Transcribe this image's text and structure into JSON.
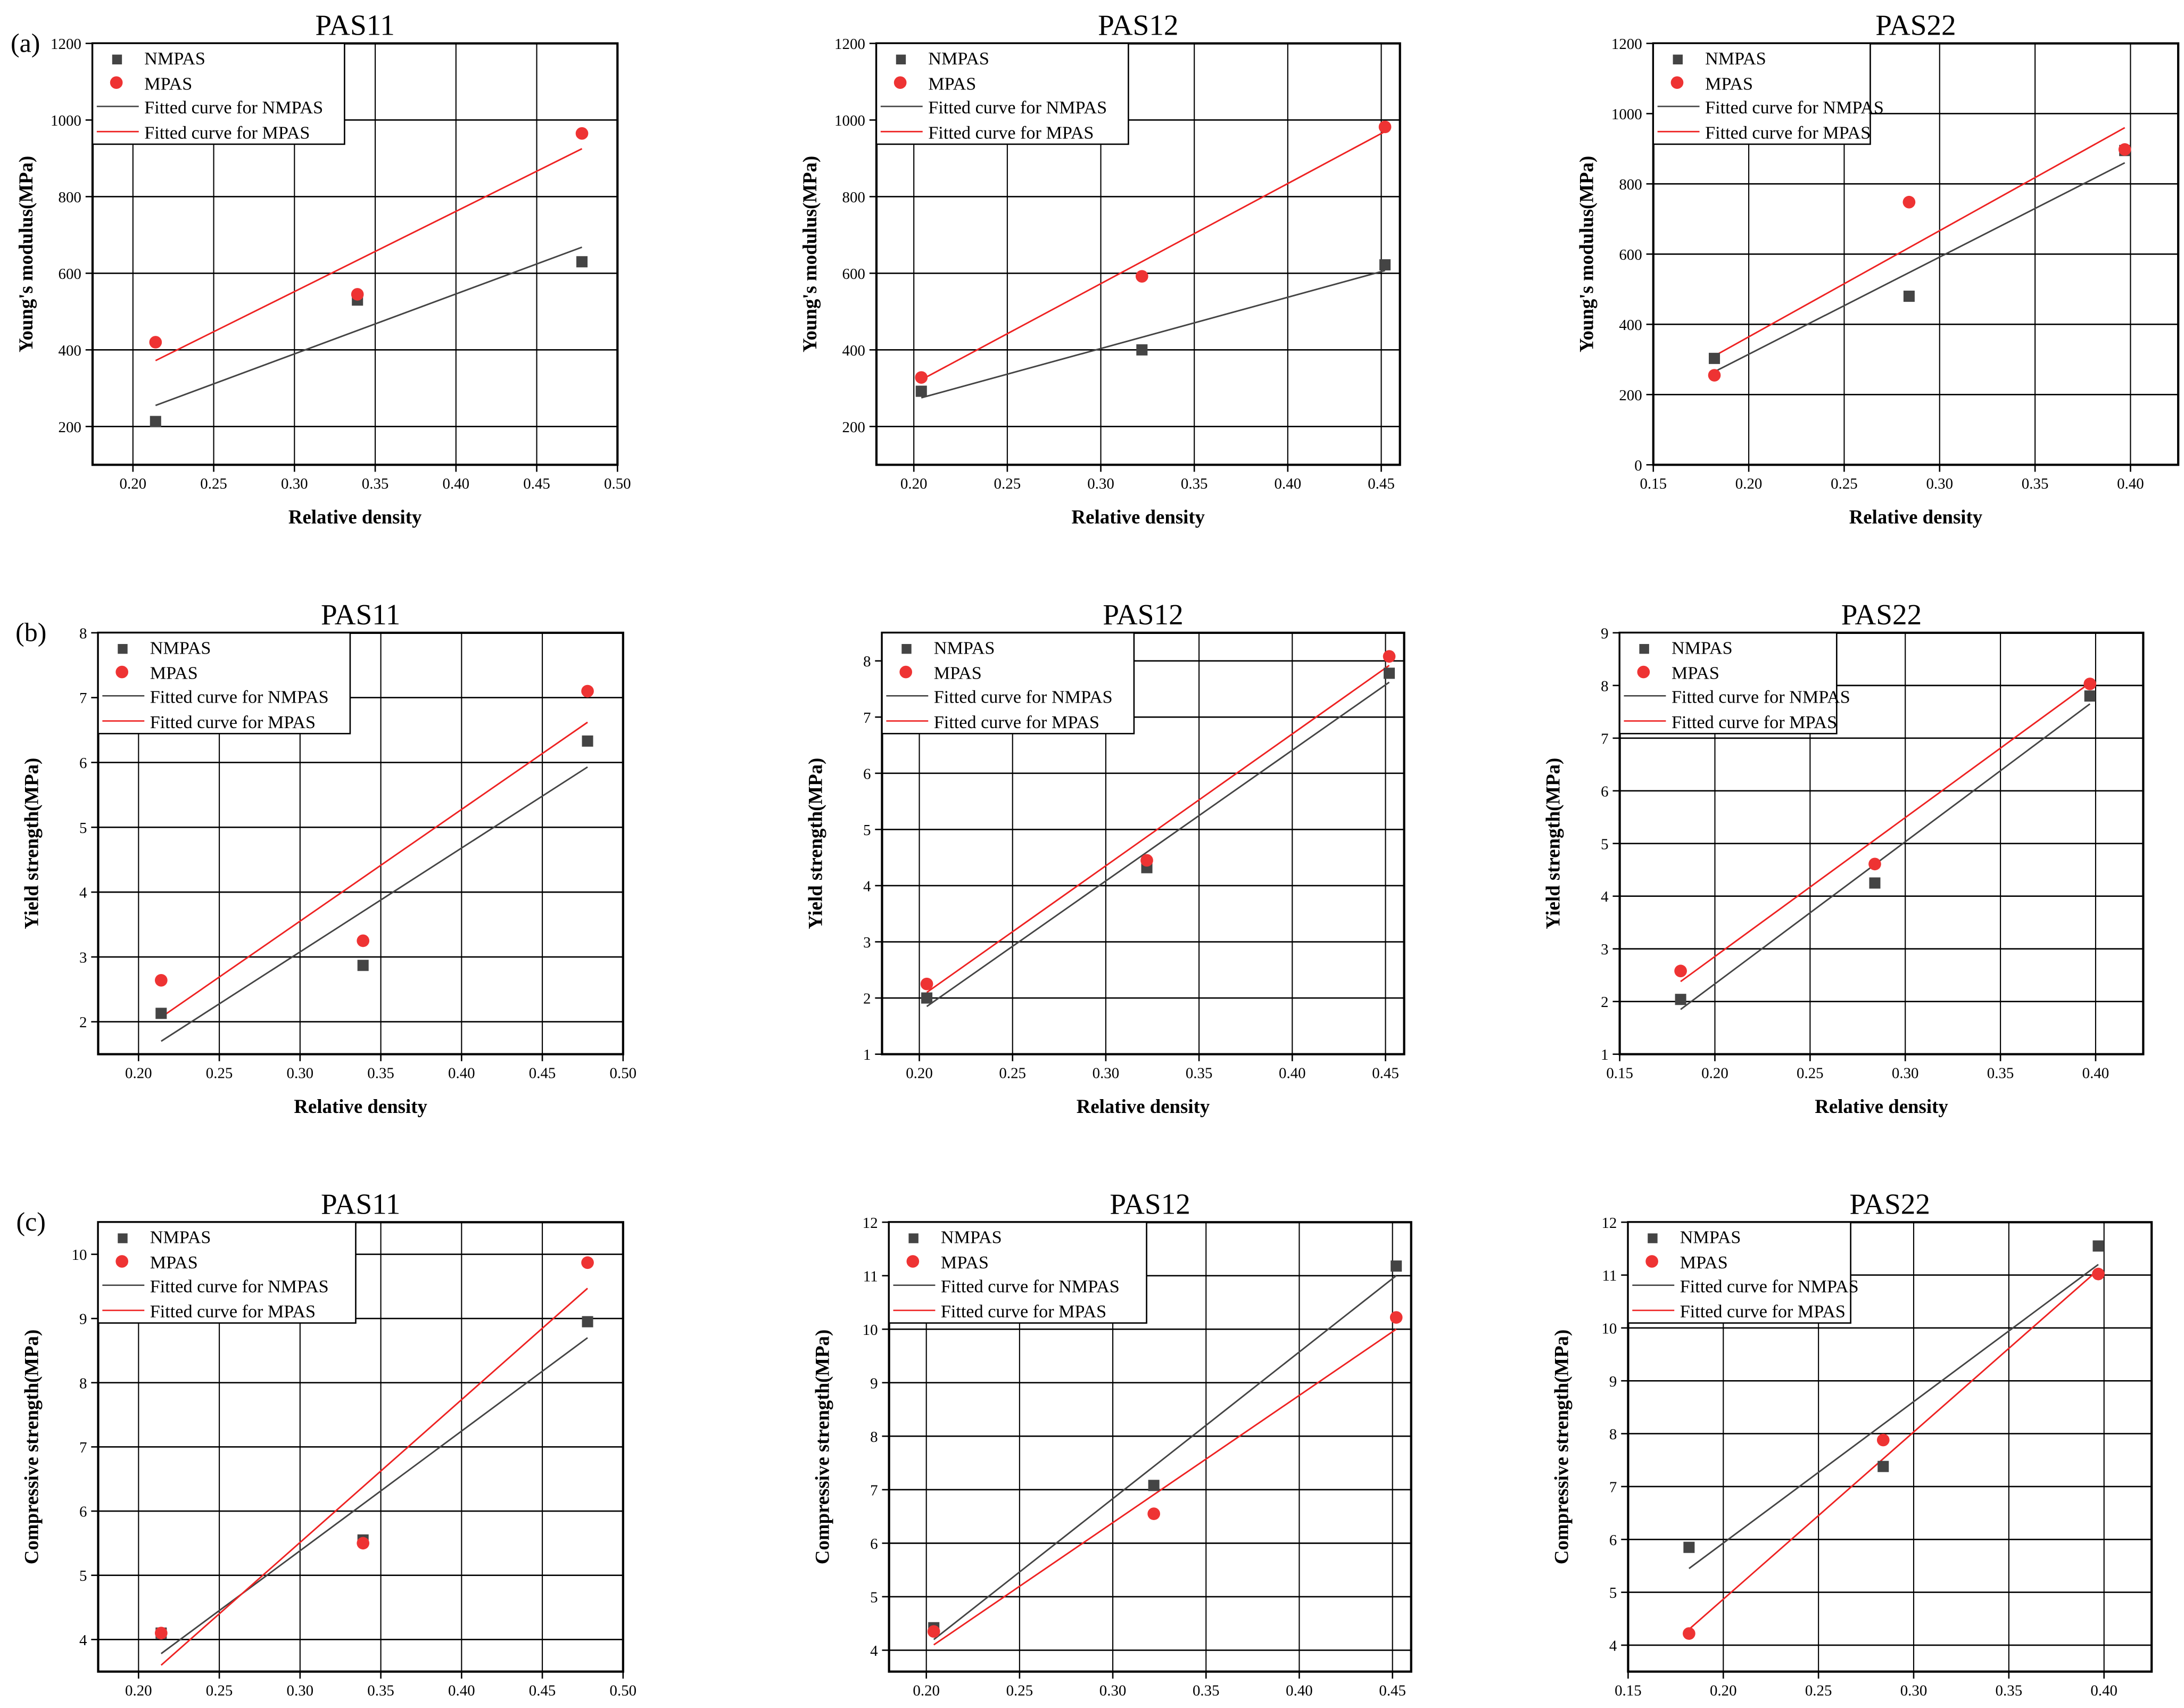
{
  "chart_data": [
    {
      "type": "scatter",
      "panel": "(a)",
      "title": "PAS11",
      "xlabel": "Relative density",
      "ylabel": "Young's modulus(MPa)",
      "xlim": [
        0.175,
        0.5
      ],
      "ylim": [
        100,
        1200
      ],
      "xticks": [
        0.2,
        0.25,
        0.3,
        0.35,
        0.4,
        0.45,
        0.5
      ],
      "yticks": [
        200,
        400,
        600,
        800,
        1000,
        1200
      ],
      "x": [
        0.214,
        0.339,
        0.478
      ],
      "series": [
        {
          "name": "NMPAS",
          "values": [
            213,
            530,
            630
          ]
        },
        {
          "name": "MPAS",
          "values": [
            420,
            545,
            965
          ]
        }
      ],
      "fits": [
        {
          "name": "Fitted curve for NMPAS",
          "values": [
            255,
            668
          ]
        },
        {
          "name": "Fitted curve for MPAS",
          "values": [
            372,
            925
          ]
        }
      ],
      "grid": true,
      "legend": "top-left"
    },
    {
      "type": "scatter",
      "panel": "",
      "title": "PAS12",
      "xlabel": "Relative density",
      "ylabel": "Young's modulus(MPa)",
      "xlim": [
        0.18,
        0.46
      ],
      "ylim": [
        100,
        1200
      ],
      "xticks": [
        0.2,
        0.25,
        0.3,
        0.35,
        0.4,
        0.45
      ],
      "yticks": [
        200,
        400,
        600,
        800,
        1000,
        1200
      ],
      "x": [
        0.204,
        0.322,
        0.452
      ],
      "series": [
        {
          "name": "NMPAS",
          "values": [
            292,
            400,
            622
          ]
        },
        {
          "name": "MPAS",
          "values": [
            328,
            592,
            982
          ]
        }
      ],
      "fits": [
        {
          "name": "Fitted curve for NMPAS",
          "values": [
            275,
            607
          ]
        },
        {
          "name": "Fitted curve for MPAS",
          "values": [
            322,
            970
          ]
        }
      ],
      "grid": true,
      "legend": "top-left"
    },
    {
      "type": "scatter",
      "panel": "",
      "title": "PAS22",
      "xlabel": "Relative density",
      "ylabel": "Young's modulus(MPa)",
      "xlim": [
        0.15,
        0.425
      ],
      "ylim": [
        0,
        1200
      ],
      "xticks": [
        0.15,
        0.2,
        0.25,
        0.3,
        0.35,
        0.4
      ],
      "yticks": [
        0,
        200,
        400,
        600,
        800,
        1000,
        1200
      ],
      "x": [
        0.182,
        0.284,
        0.397
      ],
      "series": [
        {
          "name": "NMPAS",
          "values": [
            303,
            480,
            895
          ]
        },
        {
          "name": "MPAS",
          "values": [
            255,
            748,
            898
          ]
        }
      ],
      "fits": [
        {
          "name": "Fitted curve for NMPAS",
          "values": [
            265,
            860
          ]
        },
        {
          "name": "Fitted curve for MPAS",
          "values": [
            310,
            960
          ]
        }
      ],
      "grid": true,
      "legend": "top-left"
    },
    {
      "type": "scatter",
      "panel": "(b)",
      "title": "PAS11",
      "xlabel": "Relative density",
      "ylabel": "Yield strength(MPa)",
      "xlim": [
        0.175,
        0.5
      ],
      "ylim": [
        1.5,
        8
      ],
      "xticks": [
        0.2,
        0.25,
        0.3,
        0.35,
        0.4,
        0.45,
        0.5
      ],
      "yticks": [
        2,
        3,
        4,
        5,
        6,
        7,
        8
      ],
      "x": [
        0.214,
        0.339,
        0.478
      ],
      "series": [
        {
          "name": "NMPAS",
          "values": [
            2.13,
            2.87,
            6.33
          ]
        },
        {
          "name": "MPAS",
          "values": [
            2.64,
            3.25,
            7.1
          ]
        }
      ],
      "fits": [
        {
          "name": "Fitted curve for NMPAS",
          "values": [
            1.7,
            5.93
          ]
        },
        {
          "name": "Fitted curve for MPAS",
          "values": [
            2.07,
            6.62
          ]
        }
      ],
      "grid": true,
      "legend": "top-left"
    },
    {
      "type": "scatter",
      "panel": "",
      "title": "PAS12",
      "xlabel": "Relative density",
      "ylabel": "Yield strength(MPa)",
      "xlim": [
        0.18,
        0.46
      ],
      "ylim": [
        1,
        8.5
      ],
      "xticks": [
        0.2,
        0.25,
        0.3,
        0.35,
        0.4,
        0.45
      ],
      "yticks": [
        1,
        2,
        3,
        4,
        5,
        6,
        7,
        8
      ],
      "x": [
        0.204,
        0.322,
        0.452
      ],
      "series": [
        {
          "name": "NMPAS",
          "values": [
            2.0,
            4.32,
            7.78
          ]
        },
        {
          "name": "MPAS",
          "values": [
            2.25,
            4.45,
            8.08
          ]
        }
      ],
      "fits": [
        {
          "name": "Fitted curve for NMPAS",
          "values": [
            1.85,
            7.62
          ]
        },
        {
          "name": "Fitted curve for MPAS",
          "values": [
            2.1,
            7.92
          ]
        }
      ],
      "grid": true,
      "legend": "top-left"
    },
    {
      "type": "scatter",
      "panel": "",
      "title": "PAS22",
      "xlabel": "Relative density",
      "ylabel": "Yield strength(MPa)",
      "xlim": [
        0.15,
        0.425
      ],
      "ylim": [
        1,
        9
      ],
      "xticks": [
        0.15,
        0.2,
        0.25,
        0.3,
        0.35,
        0.4
      ],
      "yticks": [
        1,
        2,
        3,
        4,
        5,
        6,
        7,
        8,
        9
      ],
      "x": [
        0.182,
        0.284,
        0.397
      ],
      "series": [
        {
          "name": "NMPAS",
          "values": [
            2.04,
            4.25,
            7.8
          ]
        },
        {
          "name": "MPAS",
          "values": [
            2.58,
            4.61,
            8.03
          ]
        }
      ],
      "fits": [
        {
          "name": "Fitted curve for NMPAS",
          "values": [
            1.85,
            7.65
          ]
        },
        {
          "name": "Fitted curve for MPAS",
          "values": [
            2.38,
            8.05
          ]
        }
      ],
      "grid": true,
      "legend": "top-left"
    },
    {
      "type": "scatter",
      "panel": "(c)",
      "title": "PAS11",
      "xlabel": "Relative density",
      "ylabel": "Compressive strength(MPa)",
      "xlim": [
        0.175,
        0.5
      ],
      "ylim": [
        3.5,
        10.5
      ],
      "xticks": [
        0.2,
        0.25,
        0.3,
        0.35,
        0.4,
        0.45,
        0.5
      ],
      "yticks": [
        4,
        5,
        6,
        7,
        8,
        9,
        10
      ],
      "x": [
        0.214,
        0.339,
        0.478
      ],
      "series": [
        {
          "name": "NMPAS",
          "values": [
            4.1,
            5.55,
            8.95
          ]
        },
        {
          "name": "MPAS",
          "values": [
            4.1,
            5.5,
            9.87
          ]
        }
      ],
      "fits": [
        {
          "name": "Fitted curve for NMPAS",
          "values": [
            3.78,
            8.7
          ]
        },
        {
          "name": "Fitted curve for MPAS",
          "values": [
            3.6,
            9.47
          ]
        }
      ],
      "grid": true,
      "legend": "top-left"
    },
    {
      "type": "scatter",
      "panel": "",
      "title": "PAS12",
      "xlabel": "Relative density",
      "ylabel": "Compressive strength(MPa)",
      "xlim": [
        0.18,
        0.46
      ],
      "ylim": [
        3.6,
        12
      ],
      "xticks": [
        0.2,
        0.25,
        0.3,
        0.35,
        0.4,
        0.45
      ],
      "yticks": [
        4,
        5,
        6,
        7,
        8,
        9,
        10,
        11,
        12
      ],
      "x": [
        0.204,
        0.322,
        0.452
      ],
      "series": [
        {
          "name": "NMPAS",
          "values": [
            4.42,
            7.08,
            11.18
          ]
        },
        {
          "name": "MPAS",
          "values": [
            4.35,
            6.55,
            10.22
          ]
        }
      ],
      "fits": [
        {
          "name": "Fitted curve for NMPAS",
          "values": [
            4.2,
            11.0
          ]
        },
        {
          "name": "Fitted curve for MPAS",
          "values": [
            4.1,
            10.0
          ]
        }
      ],
      "grid": true,
      "legend": "top-left"
    },
    {
      "type": "scatter",
      "panel": "",
      "title": "PAS22",
      "xlabel": "Relative density",
      "ylabel": "Compressive strength(MPa)",
      "xlim": [
        0.15,
        0.425
      ],
      "ylim": [
        3.5,
        12
      ],
      "xticks": [
        0.15,
        0.2,
        0.25,
        0.3,
        0.35,
        0.4
      ],
      "yticks": [
        4,
        5,
        6,
        7,
        8,
        9,
        10,
        11,
        12
      ],
      "x": [
        0.182,
        0.284,
        0.397
      ],
      "series": [
        {
          "name": "NMPAS",
          "values": [
            5.85,
            7.38,
            11.55
          ]
        },
        {
          "name": "MPAS",
          "values": [
            4.22,
            7.88,
            11.02
          ]
        }
      ],
      "fits": [
        {
          "name": "Fitted curve for NMPAS",
          "values": [
            5.45,
            11.2
          ]
        },
        {
          "name": "Fitted curve for MPAS",
          "values": [
            4.3,
            11.1
          ]
        }
      ],
      "grid": true,
      "legend": "top-left"
    }
  ],
  "colors": {
    "NMPAS": "#444444",
    "MPAS": "#ee3333",
    "fitN": "#444444",
    "fitM": "#ee2222"
  }
}
